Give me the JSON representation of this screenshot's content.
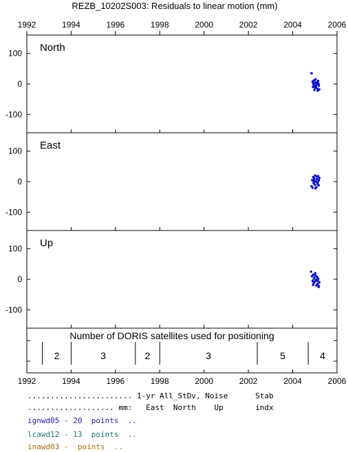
{
  "chart_data": {
    "type": "scatter",
    "title": "REZB_10202S003: Residuals to linear motion (mm)",
    "x_ticks": [
      1992,
      1994,
      1996,
      1998,
      2000,
      2002,
      2004,
      2006
    ],
    "xlim": [
      1992,
      2006
    ],
    "panels": [
      {
        "name": "North",
        "ylim": [
          -160,
          160
        ],
        "y_ticks": [
          100,
          0,
          -100
        ],
        "points": [
          [
            2004.85,
            35
          ],
          [
            2004.9,
            8
          ],
          [
            2004.93,
            2
          ],
          [
            2004.95,
            -4
          ],
          [
            2004.97,
            12
          ],
          [
            2005.0,
            -12
          ],
          [
            2005.02,
            5
          ],
          [
            2005.05,
            -8
          ],
          [
            2005.07,
            -2
          ],
          [
            2005.1,
            -15
          ],
          [
            2005.12,
            6
          ],
          [
            2004.98,
            -20
          ],
          [
            2005.15,
            10
          ],
          [
            2005.18,
            -6
          ],
          [
            2005.2,
            -18
          ],
          [
            2005.03,
            15
          ],
          [
            2004.92,
            -10
          ],
          [
            2005.08,
            3
          ],
          [
            2005.13,
            -22
          ],
          [
            2005.17,
            0
          ]
        ]
      },
      {
        "name": "East",
        "ylim": [
          -160,
          160
        ],
        "y_ticks": [
          100,
          0,
          -100
        ],
        "points": [
          [
            2004.85,
            -15
          ],
          [
            2004.88,
            5
          ],
          [
            2004.9,
            -20
          ],
          [
            2004.93,
            15
          ],
          [
            2004.95,
            -5
          ],
          [
            2004.97,
            10
          ],
          [
            2005.0,
            -10
          ],
          [
            2005.02,
            20
          ],
          [
            2005.05,
            0
          ],
          [
            2005.07,
            -18
          ],
          [
            2005.1,
            8
          ],
          [
            2005.12,
            -3
          ],
          [
            2005.15,
            18
          ],
          [
            2005.17,
            -12
          ],
          [
            2005.2,
            12
          ],
          [
            2005.03,
            -22
          ],
          [
            2004.98,
            3
          ],
          [
            2005.08,
            16
          ],
          [
            2005.13,
            -8
          ],
          [
            2005.18,
            4
          ]
        ]
      },
      {
        "name": "Up",
        "ylim": [
          -160,
          160
        ],
        "y_ticks": [
          100,
          0,
          -100
        ],
        "points": [
          [
            2004.83,
            25
          ],
          [
            2004.87,
            10
          ],
          [
            2004.9,
            -5
          ],
          [
            2004.93,
            15
          ],
          [
            2004.95,
            -12
          ],
          [
            2004.97,
            5
          ],
          [
            2005.0,
            -8
          ],
          [
            2005.02,
            20
          ],
          [
            2005.05,
            -3
          ],
          [
            2005.07,
            -20
          ],
          [
            2005.1,
            8
          ],
          [
            2005.12,
            -15
          ],
          [
            2005.15,
            2
          ],
          [
            2005.17,
            -25
          ],
          [
            2005.2,
            -10
          ],
          [
            2005.03,
            12
          ],
          [
            2004.92,
            -18
          ],
          [
            2005.08,
            0
          ],
          [
            2005.13,
            -5
          ],
          [
            2005.18,
            -22
          ]
        ]
      }
    ],
    "satellites": {
      "label": "Number of DORIS satellites used for positioning",
      "boundaries": [
        1992.7,
        1994.0,
        1996.9,
        1998.0,
        2002.4,
        2004.7
      ],
      "segments": [
        {
          "from": 1992.7,
          "to": 1994.0,
          "count": "2"
        },
        {
          "from": 1994.0,
          "to": 1996.9,
          "count": "3"
        },
        {
          "from": 1996.9,
          "to": 1998.0,
          "count": "2"
        },
        {
          "from": 1998.0,
          "to": 2002.4,
          "count": "3"
        },
        {
          "from": 2002.4,
          "to": 2004.7,
          "count": "5"
        },
        {
          "from": 2004.7,
          "to": 2006.0,
          "count": "4"
        }
      ]
    },
    "colors": {
      "points": "#1010d0",
      "mean": "#1a9a5a"
    }
  },
  "legend": {
    "header1": "....................... 1-yr All_StDv, Noise      Stab",
    "header2": "................... mm:   East  North    Up       indx",
    "line1": "ignwd05 - 20  points  ..",
    "line2": "lcawd12 - 13  points  ..",
    "line3": "inawd03 -  points  .."
  }
}
